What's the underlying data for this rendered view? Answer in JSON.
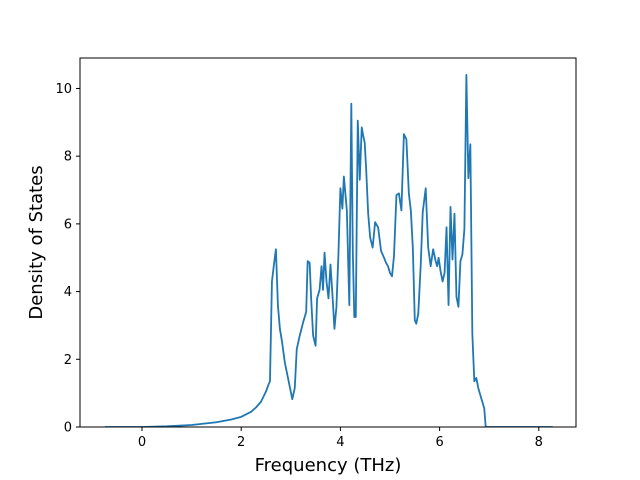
{
  "chart_data": {
    "type": "line",
    "title": "",
    "xlabel": "Frequency (THz)",
    "ylabel": "Density of States",
    "xlim": [
      -1.25,
      8.75
    ],
    "ylim": [
      0,
      10.9
    ],
    "xticks": [
      0,
      2,
      4,
      6,
      8
    ],
    "yticks": [
      0,
      2,
      4,
      6,
      8,
      10
    ],
    "xtick_labels": [
      "0",
      "2",
      "4",
      "6",
      "8"
    ],
    "ytick_labels": [
      "0",
      "2",
      "4",
      "6",
      "8",
      "10"
    ],
    "grid": false,
    "colors": {
      "line": "#1f77b4"
    },
    "series": [
      {
        "x": [
          -0.75,
          0.0,
          0.5,
          1.0,
          1.5,
          1.8,
          2.0,
          2.2,
          2.3,
          2.4,
          2.45,
          2.5,
          2.55,
          2.58,
          2.62,
          2.66,
          2.7,
          2.74,
          2.78,
          2.82,
          2.88,
          2.95,
          3.03,
          3.08,
          3.12,
          3.18,
          3.25,
          3.31,
          3.34,
          3.38,
          3.41,
          3.45,
          3.5,
          3.53,
          3.58,
          3.62,
          3.65,
          3.68,
          3.72,
          3.76,
          3.8,
          3.84,
          3.88,
          3.92,
          3.96,
          4.0,
          4.04,
          4.07,
          4.1,
          4.13,
          4.18,
          4.22,
          4.25,
          4.28,
          4.31,
          4.35,
          4.39,
          4.43,
          4.46,
          4.49,
          4.52,
          4.56,
          4.6,
          4.65,
          4.7,
          4.76,
          4.82,
          4.88,
          4.92,
          4.96,
          5.0,
          5.04,
          5.08,
          5.13,
          5.18,
          5.23,
          5.28,
          5.33,
          5.38,
          5.42,
          5.46,
          5.5,
          5.53,
          5.57,
          5.62,
          5.66,
          5.72,
          5.77,
          5.82,
          5.87,
          5.92,
          5.95,
          5.98,
          6.02,
          6.06,
          6.1,
          6.14,
          6.18,
          6.22,
          6.26,
          6.3,
          6.34,
          6.38,
          6.42,
          6.46,
          6.5,
          6.54,
          6.58,
          6.62,
          6.66,
          6.7,
          6.74,
          6.78,
          6.82,
          6.86,
          6.9,
          6.93,
          6.96,
          6.98,
          7.0,
          7.02,
          7.05,
          7.08,
          7.1,
          7.13,
          7.16,
          7.2,
          7.26,
          7.32,
          7.38,
          7.44,
          7.5,
          7.55,
          7.6,
          8.0,
          8.28
        ],
        "values": [
          0.0,
          0.0,
          0.02,
          0.06,
          0.14,
          0.22,
          0.3,
          0.45,
          0.58,
          0.75,
          0.9,
          1.05,
          1.25,
          1.35,
          4.3,
          4.8,
          5.25,
          3.6,
          2.9,
          2.55,
          1.9,
          1.4,
          0.82,
          1.15,
          2.3,
          2.7,
          3.1,
          3.4,
          4.9,
          4.85,
          3.8,
          2.7,
          2.4,
          3.8,
          4.05,
          4.75,
          4.05,
          5.15,
          4.3,
          3.8,
          4.8,
          3.9,
          2.9,
          3.55,
          5.1,
          7.05,
          6.45,
          7.4,
          6.9,
          6.4,
          3.6,
          9.55,
          5.2,
          3.25,
          3.25,
          9.05,
          7.3,
          8.85,
          8.6,
          8.4,
          7.6,
          6.3,
          5.6,
          5.3,
          6.05,
          5.9,
          5.2,
          5.0,
          4.85,
          4.75,
          4.55,
          4.45,
          5.05,
          6.85,
          6.9,
          6.4,
          8.65,
          8.5,
          6.9,
          6.4,
          5.3,
          3.15,
          3.05,
          3.35,
          4.8,
          6.35,
          7.05,
          5.3,
          4.75,
          5.25,
          4.9,
          4.75,
          5.0,
          4.6,
          4.3,
          4.55,
          5.9,
          3.6,
          6.5,
          4.95,
          6.3,
          3.85,
          3.55,
          4.9,
          5.1,
          5.85,
          10.4,
          7.35,
          8.35,
          2.75,
          1.35,
          1.45,
          1.15,
          0.95,
          0.75,
          0.55,
          0.0,
          0.0,
          0.0,
          0.0,
          0.0,
          0.0,
          0.0,
          0.0,
          0.0,
          0.0,
          0.0,
          0.0,
          0.0,
          0.0,
          0.0,
          0.0,
          0.0,
          0.0,
          0.0,
          0.0
        ]
      }
    ]
  }
}
